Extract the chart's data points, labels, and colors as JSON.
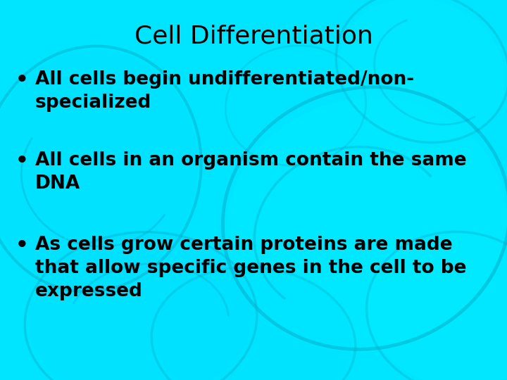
{
  "title": "Cell Differentiation",
  "title_fontsize": 26,
  "title_fontweight": "normal",
  "title_color": "#000000",
  "bullet_points": [
    "All cells begin undifferentiated/non-\nspecialized",
    "All cells in an organism contain the same\nDNA",
    "As cells grow certain proteins are made\nthat allow specific genes in the cell to be\nexpressed"
  ],
  "bullet_fontsize": 19,
  "bullet_color": "#000000",
  "bullet_fontweight": "bold",
  "background_color": "#00E5FF",
  "fig_width": 7.2,
  "fig_height": 5.4,
  "cell_edge_color": "#00B0CC",
  "cell_fill_light": "#00EEFF",
  "cell_fill_dark": "#00CCEE"
}
